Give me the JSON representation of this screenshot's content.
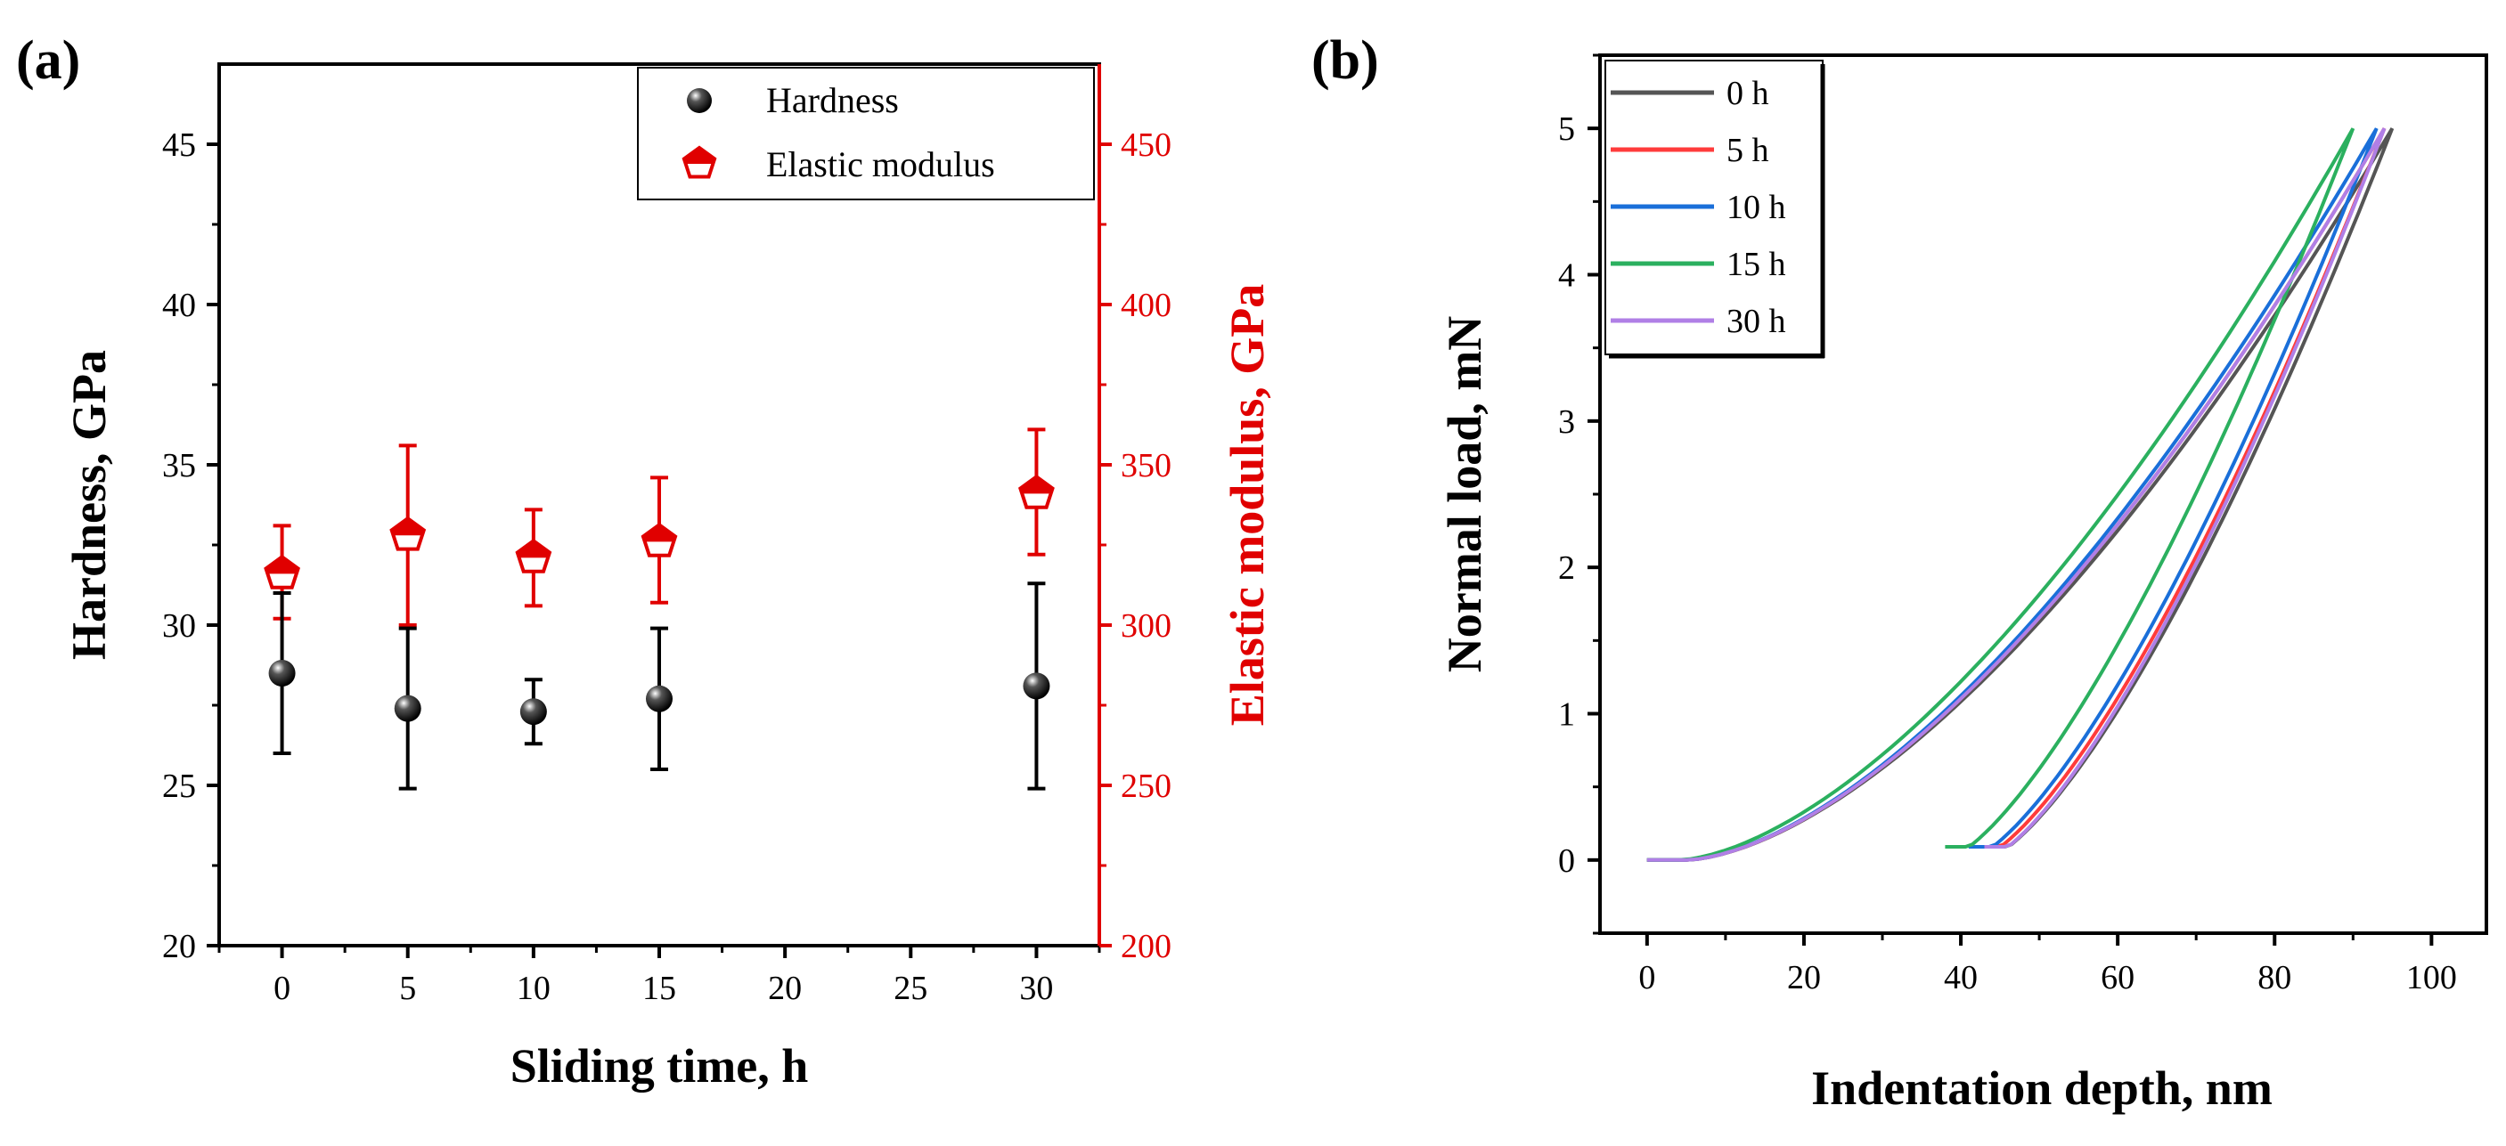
{
  "chart_data": [
    {
      "panel": "(a)",
      "type": "scatter",
      "title": "",
      "xlabel": "Sliding time, h",
      "ylabel": "Hardness, GPa",
      "y2label": "Elastic modulus, GPa",
      "x_ticks": [
        0,
        5,
        10,
        15,
        20,
        25,
        30
      ],
      "y_ticks": [
        20,
        25,
        30,
        35,
        40,
        45
      ],
      "y2_ticks": [
        200,
        250,
        300,
        350,
        400,
        450
      ],
      "xlim": [
        -2.5,
        32.5
      ],
      "ylim": [
        20,
        47.5
      ],
      "y2lim": [
        200,
        475
      ],
      "legend_position": "top-right",
      "series": [
        {
          "name": "Hardness",
          "axis": "left",
          "color": "#000000",
          "marker": "sphere",
          "x": [
            0,
            5,
            10,
            15,
            30
          ],
          "y": [
            28.5,
            27.4,
            27.3,
            27.7,
            28.1
          ],
          "err_low": [
            26.0,
            24.9,
            26.3,
            25.5,
            24.9
          ],
          "err_high": [
            31.0,
            29.9,
            28.3,
            29.9,
            31.3
          ]
        },
        {
          "name": "Elastic modulus",
          "axis": "right",
          "color": "#e00000",
          "marker": "pentagon-half",
          "x": [
            0,
            5,
            10,
            15,
            30
          ],
          "y": [
            316,
            328,
            321,
            326,
            341
          ],
          "err_low": [
            302,
            300,
            306,
            307,
            322
          ],
          "err_high": [
            331,
            356,
            336,
            346,
            361
          ]
        }
      ]
    },
    {
      "panel": "(b)",
      "type": "line",
      "title": "",
      "xlabel": "Indentation depth, nm",
      "ylabel": "Normal load, mN",
      "x_ticks": [
        0,
        20,
        40,
        60,
        80,
        100
      ],
      "y_ticks": [
        0,
        1,
        2,
        3,
        4,
        5
      ],
      "xlim": [
        -6,
        107
      ],
      "ylim": [
        -0.5,
        5.5
      ],
      "legend_position": "top-left",
      "series": [
        {
          "name": "0 h",
          "color": "#555555",
          "max_depth": 95,
          "load_start": 5,
          "load_mid_depth": 58,
          "unload_end": 43
        },
        {
          "name": "5 h",
          "color": "#ff3b3b",
          "max_depth": 94,
          "load_start": 5,
          "load_mid_depth": 54,
          "unload_end": 42
        },
        {
          "name": "10 h",
          "color": "#1a6fd9",
          "max_depth": 93,
          "load_start": 5,
          "load_mid_depth": 55,
          "unload_end": 41
        },
        {
          "name": "15 h",
          "color": "#2bb05f",
          "max_depth": 90,
          "load_start": 4,
          "load_mid_depth": 53,
          "unload_end": 38
        },
        {
          "name": "30 h",
          "color": "#b07fe6",
          "max_depth": 94,
          "load_start": 5,
          "load_mid_depth": 57,
          "unload_end": 43
        }
      ]
    }
  ],
  "labels": {
    "panel_a": "(a)",
    "panel_b": "(b)"
  }
}
